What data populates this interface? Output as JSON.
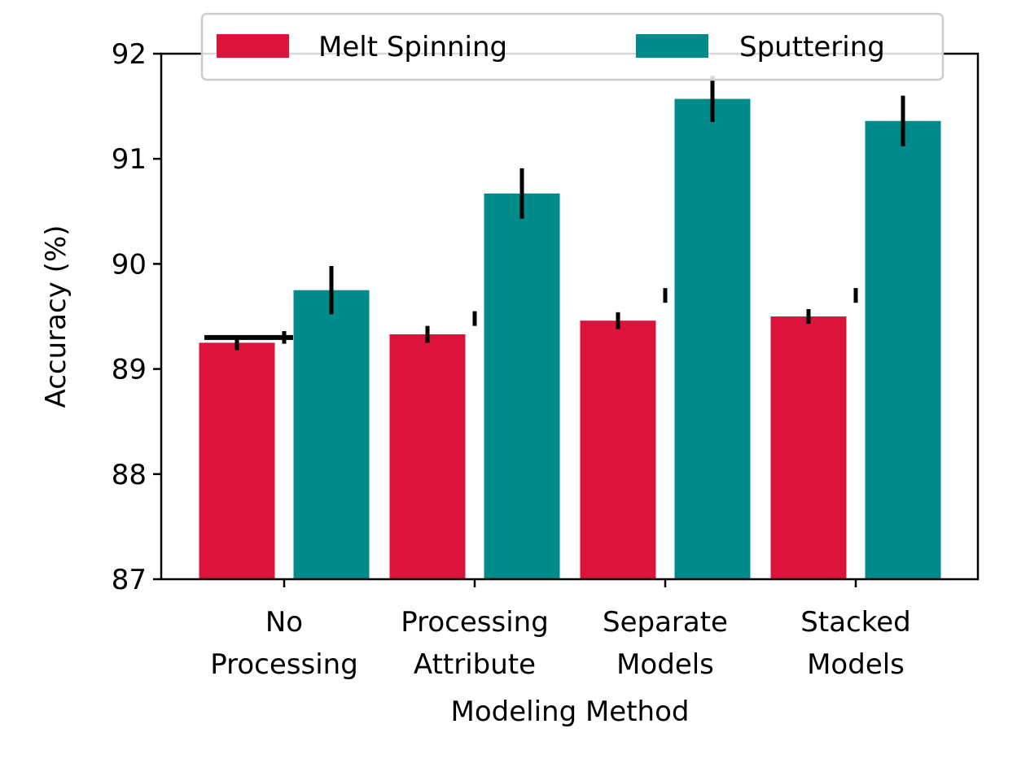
{
  "chart_data": {
    "type": "bar",
    "title": "",
    "xlabel": "Modeling Method",
    "ylabel": "Accuracy (%)",
    "ylim": [
      87,
      92
    ],
    "yticks": [
      87,
      88,
      89,
      90,
      91,
      92
    ],
    "categories": [
      [
        "No",
        "Processing"
      ],
      [
        "Processing",
        "Attribute"
      ],
      [
        "Separate",
        "Models"
      ],
      [
        "Stacked",
        "Models"
      ]
    ],
    "series": [
      {
        "name": "Melt Spinning",
        "color": "#dc143c",
        "values": [
          89.25,
          89.33,
          89.46,
          89.5
        ],
        "errors": [
          0.07,
          0.08,
          0.08,
          0.07
        ]
      },
      {
        "name": "Sputtering",
        "color": "#008b8b",
        "values": [
          89.75,
          90.67,
          91.57,
          91.36
        ],
        "errors": [
          0.23,
          0.24,
          0.22,
          0.24
        ]
      }
    ],
    "extra_error_marks": [
      {
        "category": 0,
        "value": 89.3,
        "error": 0.06
      },
      {
        "category": 1,
        "value": 89.48,
        "error": 0.07
      },
      {
        "category": 2,
        "value": 89.7,
        "error": 0.07
      },
      {
        "category": 3,
        "value": 89.7,
        "error": 0.07
      }
    ],
    "reference_segment": {
      "value": 89.3,
      "from_category": 0,
      "span": "across-pair"
    },
    "legend": {
      "placement": "upper-center",
      "columns": 2
    },
    "grid": false
  }
}
